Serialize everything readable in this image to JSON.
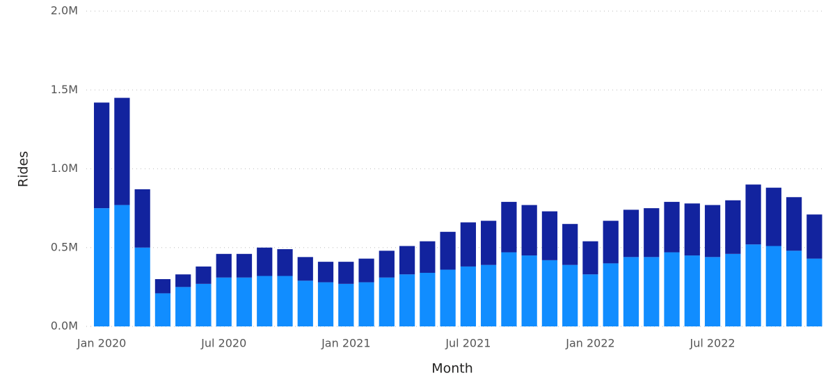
{
  "chart_data": {
    "type": "stacked_bar",
    "x_label": "Month",
    "y_label": "Rides",
    "categories": [
      "Jan 2020",
      null,
      null,
      null,
      null,
      null,
      "Jul 2020",
      null,
      null,
      null,
      null,
      null,
      "Jan 2021",
      null,
      null,
      null,
      null,
      null,
      "Jul 2021",
      null,
      null,
      null,
      null,
      null,
      "Jan 2022",
      null,
      null,
      null,
      null,
      null,
      "Jul 2022",
      null,
      null,
      null,
      null,
      null
    ],
    "series": [
      {
        "color": "#118dff",
        "values": [
          0.75,
          0.77,
          0.5,
          0.21,
          0.25,
          0.27,
          0.31,
          0.31,
          0.32,
          0.32,
          0.29,
          0.28,
          0.27,
          0.28,
          0.31,
          0.33,
          0.34,
          0.36,
          0.38,
          0.39,
          0.47,
          0.45,
          0.42,
          0.39,
          0.33,
          0.4,
          0.44,
          0.44,
          0.47,
          0.45,
          0.44,
          0.46,
          0.52,
          0.51,
          0.48,
          0.43
        ]
      },
      {
        "color": "#12239e",
        "values": [
          0.67,
          0.68,
          0.37,
          0.09,
          0.08,
          0.11,
          0.15,
          0.15,
          0.18,
          0.17,
          0.15,
          0.13,
          0.14,
          0.15,
          0.17,
          0.18,
          0.2,
          0.24,
          0.28,
          0.28,
          0.32,
          0.32,
          0.31,
          0.26,
          0.21,
          0.27,
          0.3,
          0.31,
          0.32,
          0.33,
          0.33,
          0.34,
          0.38,
          0.37,
          0.34,
          0.28
        ]
      }
    ],
    "ylim": [
      0,
      2
    ],
    "yticks": [
      {
        "value": 0,
        "label": "0.0M"
      },
      {
        "value": 0.5,
        "label": "0.5M"
      },
      {
        "value": 1,
        "label": "1.0M"
      },
      {
        "value": 1.5,
        "label": "1.5M"
      },
      {
        "value": 2,
        "label": "2.0M"
      }
    ],
    "grid": true
  }
}
